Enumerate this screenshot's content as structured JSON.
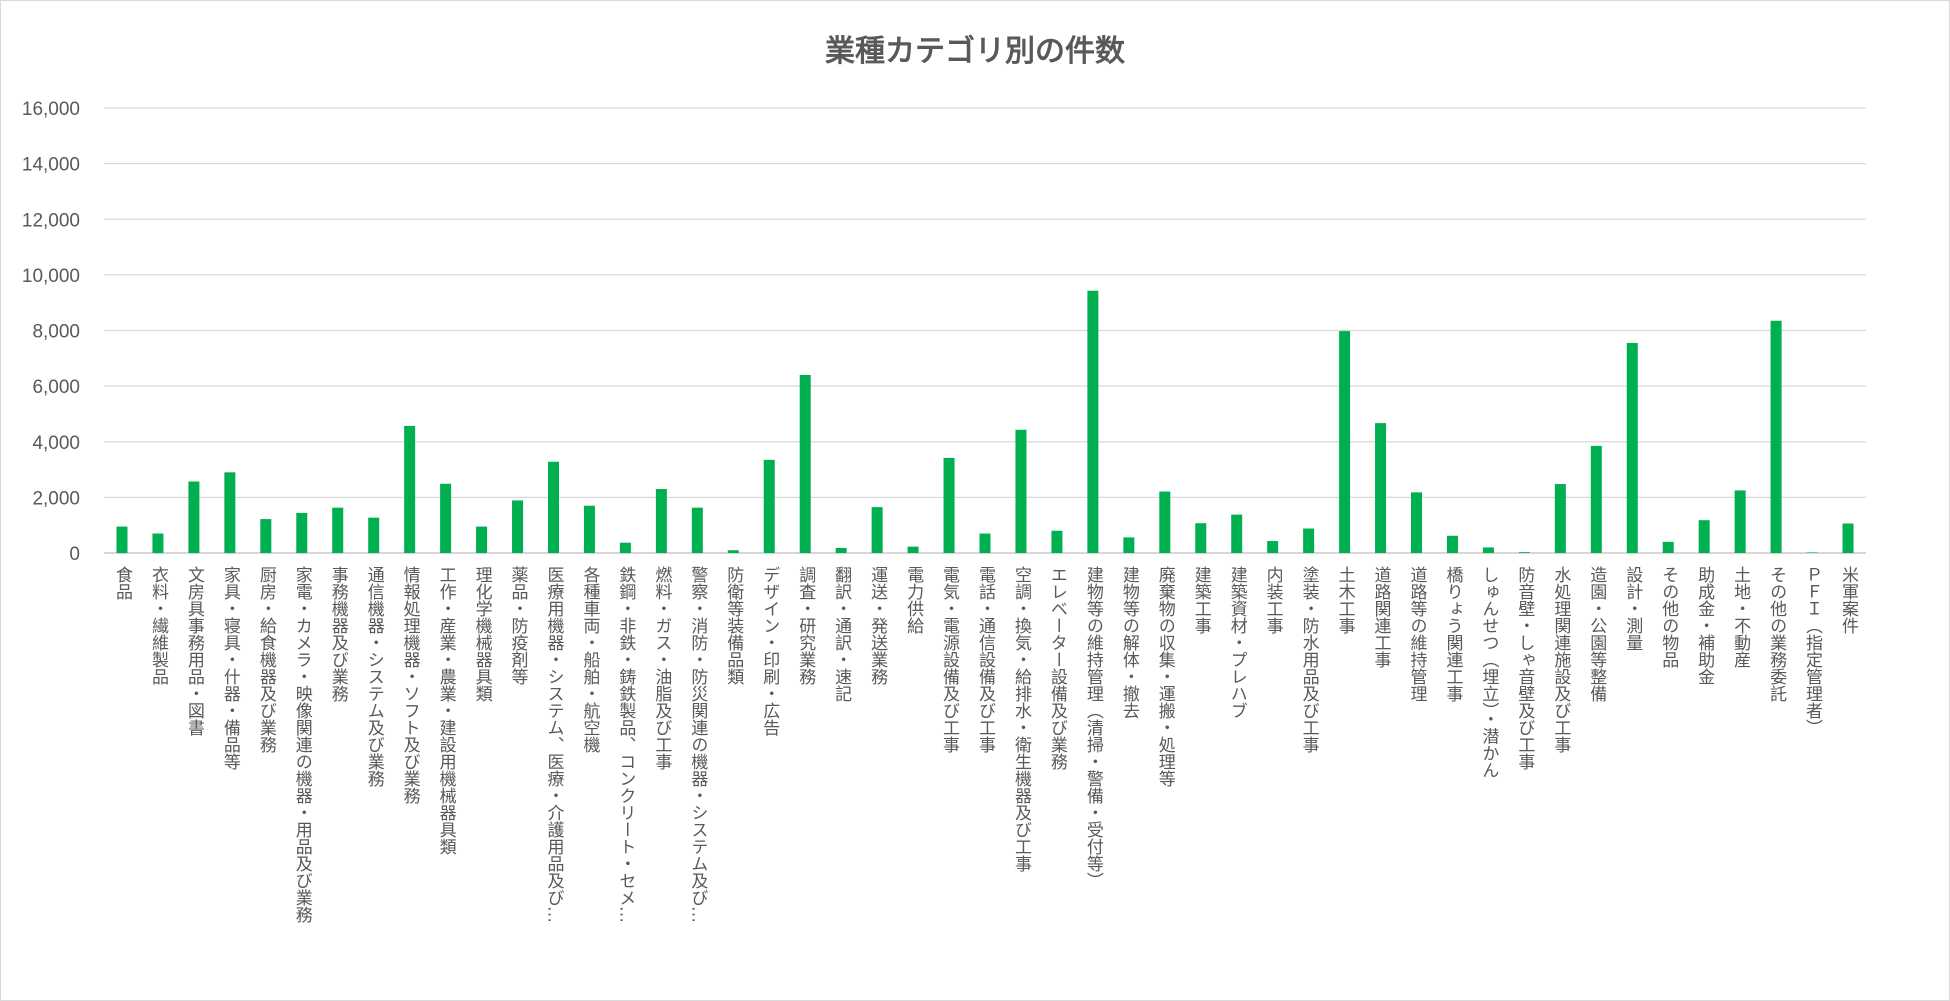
{
  "chart_data": {
    "type": "bar",
    "title": "業種カテゴリ別の件数",
    "xlabel": "",
    "ylabel": "",
    "ylim": [
      0,
      16000
    ],
    "yticks": [
      0,
      2000,
      4000,
      6000,
      8000,
      10000,
      12000,
      14000,
      16000
    ],
    "ytick_labels": [
      "0",
      "2,000",
      "4,000",
      "6,000",
      "8,000",
      "10,000",
      "12,000",
      "14,000",
      "16,000"
    ],
    "grid": true,
    "legend": "none",
    "bar_color": "#00b050",
    "categories": [
      "食品",
      "衣料・繊維製品",
      "文房具事務用品・図書",
      "家具・寝具・什器・備品等",
      "厨房・給食機器及び業務",
      "家電・カメラ・映像関連の機器・用品及び業務",
      "事務機器及び業務",
      "通信機器・システム及び業務",
      "情報処理機器・ソフト及び業務",
      "工作・産業・農業・建設用機械器具類",
      "理化学機械器具類",
      "薬品・防疫剤等",
      "医療用機器・システム、医療・介護用品及び…",
      "各種車両・船舶・航空機",
      "鉄鋼・非鉄・鋳鉄製品、コンクリート・セメ…",
      "燃料・ガス・油脂及び工事",
      "警察・消防・防災関連の機器・システム及び…",
      "防衛等装備品類",
      "デザイン・印刷・広告",
      "調査・研究業務",
      "翻訳・通訳・速記",
      "運送・発送業務",
      "電力供給",
      "電気・電源設備及び工事",
      "電話・通信設備及び工事",
      "空調・換気・給排水・衛生機器及び工事",
      "エレベーター設備及び業務",
      "建物等の維持管理（清掃・警備・受付等）",
      "建物等の解体・撤去",
      "廃棄物の収集・運搬・処理等",
      "建築工事",
      "建築資材・プレハブ",
      "内装工事",
      "塗装・防水用品及び工事",
      "土木工事",
      "道路関連工事",
      "道路等の維持管理",
      "橋りょう関連工事",
      "しゅんせつ（埋立）・潜かん",
      "防音壁・しゃ音壁及び工事",
      "水処理関連施設及び工事",
      "造園・公園等整備",
      "設計・測量",
      "その他の物品",
      "助成金・補助金",
      "土地・不動産",
      "その他の業務委託",
      "ＰＦＩ（指定管理者）",
      "米軍案件"
    ],
    "values": [
      950,
      700,
      2570,
      2900,
      1220,
      1440,
      1630,
      1270,
      4570,
      2490,
      950,
      1890,
      3280,
      1700,
      370,
      2300,
      1630,
      100,
      3350,
      6400,
      180,
      1650,
      230,
      3420,
      700,
      4430,
      800,
      9430,
      560,
      2210,
      1070,
      1380,
      430,
      880,
      7980,
      4670,
      2180,
      620,
      200,
      30,
      2480,
      3850,
      7550,
      400,
      1180,
      2250,
      8350,
      20,
      1060
    ]
  }
}
